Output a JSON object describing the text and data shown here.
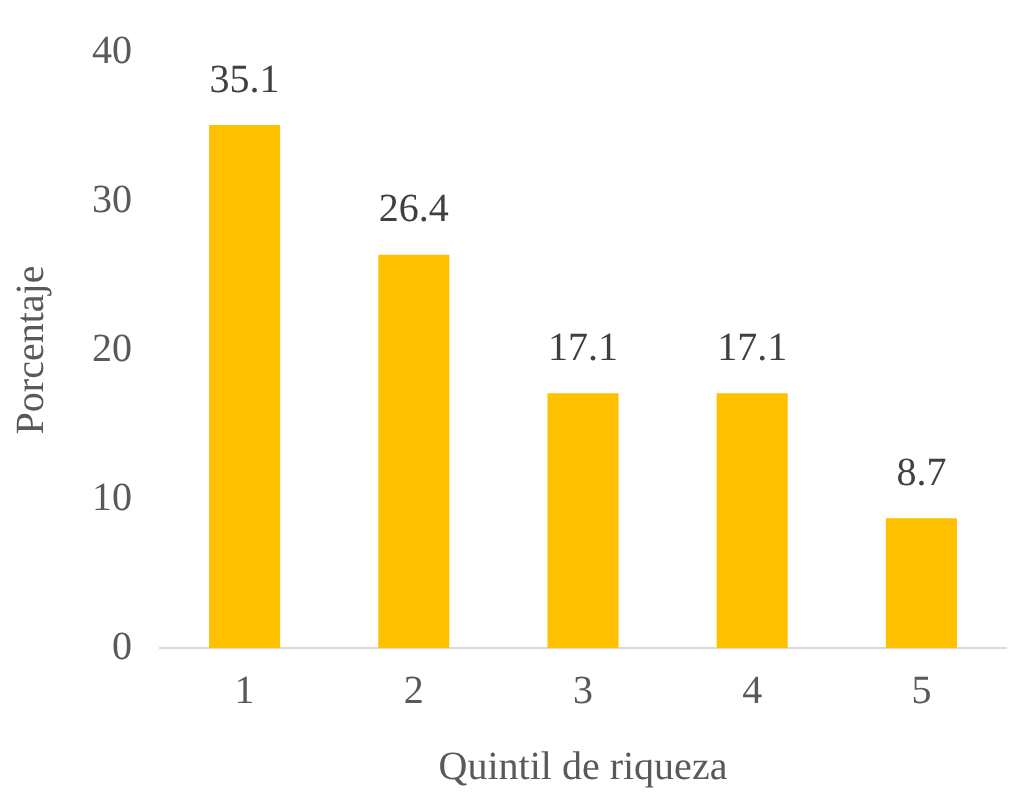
{
  "chart_data": {
    "type": "bar",
    "xlabel": "Quintil de riqueza",
    "ylabel": "Porcentaje",
    "categories": [
      "1",
      "2",
      "3",
      "4",
      "5"
    ],
    "values": [
      35.1,
      26.4,
      17.1,
      17.1,
      8.7
    ],
    "color": "#ffc000",
    "ylim": [
      0,
      40
    ],
    "yticks": [
      0,
      10,
      20,
      30,
      40
    ],
    "grid": false,
    "legend": false,
    "data_labels": true
  }
}
